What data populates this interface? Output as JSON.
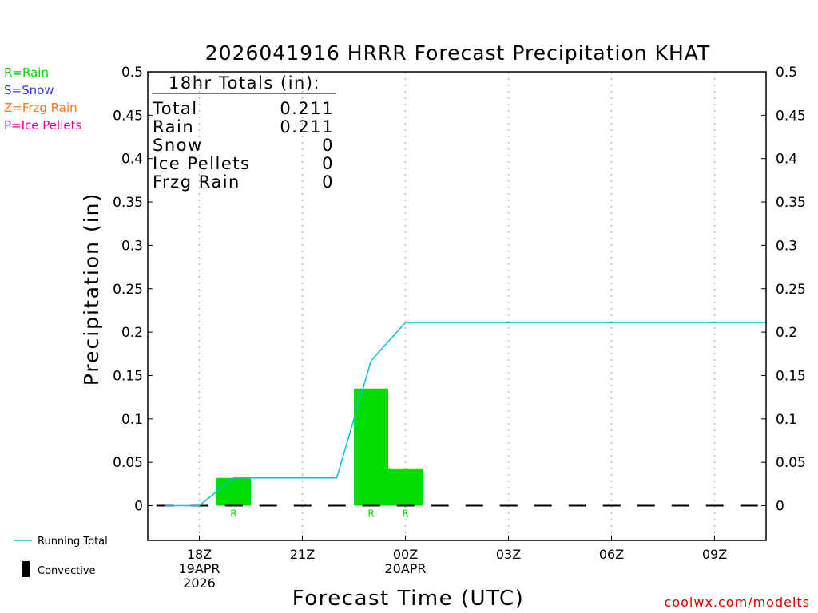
{
  "precip_type_key": [
    {
      "label": "R=Rain",
      "color": "#00d000"
    },
    {
      "label": "S=Snow",
      "color": "#3333ff"
    },
    {
      "label": "Z=Frzg Rain",
      "color": "#f07820"
    },
    {
      "label": "P=Ice Pellets",
      "color": "#e000a0"
    }
  ],
  "line_legend": {
    "running_total": "Running Total",
    "convective": "Convective"
  },
  "credit": "coolwx.com/modelts",
  "totals_box": {
    "heading": "18hr Totals (in):",
    "rows": [
      {
        "label": "Total",
        "value": "0.211"
      },
      {
        "label": "Rain",
        "value": "0.211"
      },
      {
        "label": "Snow",
        "value": "0"
      },
      {
        "label": "Ice Pellets",
        "value": "0"
      },
      {
        "label": "Frzg Rain",
        "value": "0"
      }
    ]
  },
  "colors": {
    "rain": "#00dd00",
    "running_total": "#00c8d0",
    "axis": "#000000",
    "grid": "#aaaaaa"
  },
  "chart_data": {
    "type": "bar",
    "title": "2026041916 HRRR Forecast Precipitation KHAT",
    "xlabel": "Forecast Time (UTC)",
    "ylabel": "Precipitation (in)",
    "xlim": [
      16.5,
      34.5
    ],
    "ylim": [
      -0.04,
      0.5
    ],
    "yticks": [
      0,
      0.05,
      0.1,
      0.15,
      0.2,
      0.25,
      0.3,
      0.35,
      0.4,
      0.45,
      0.5
    ],
    "ytick_labels": [
      "0",
      "0.05",
      "0.1",
      "0.15",
      "0.2",
      "0.25",
      "0.3",
      "0.35",
      "0.4",
      "0.45",
      "0.5"
    ],
    "xticks": [
      {
        "hour": 18,
        "lines": [
          "18Z",
          "19APR",
          "2026"
        ]
      },
      {
        "hour": 21,
        "lines": [
          "21Z"
        ]
      },
      {
        "hour": 24,
        "lines": [
          "00Z",
          "20APR"
        ]
      },
      {
        "hour": 27,
        "lines": [
          "03Z"
        ]
      },
      {
        "hour": 30,
        "lines": [
          "06Z"
        ]
      },
      {
        "hour": 33,
        "lines": [
          "09Z"
        ]
      }
    ],
    "grid": "vertical dotted",
    "bars": [
      {
        "start": 18.5,
        "end": 19.5,
        "value": 0.032,
        "type": "R"
      },
      {
        "start": 22.5,
        "end": 23.5,
        "value": 0.135,
        "type": "R"
      },
      {
        "start": 23.5,
        "end": 24.5,
        "value": 0.043,
        "type": "R"
      }
    ],
    "bar_type_labels": [
      {
        "x": 19,
        "text": "R"
      },
      {
        "x": 23,
        "text": "R"
      },
      {
        "x": 24,
        "text": "R"
      }
    ],
    "series": [
      {
        "name": "Running Total",
        "x": [
          17,
          18,
          19,
          20,
          21,
          22,
          23,
          24,
          25,
          26,
          27,
          28,
          29,
          30,
          31,
          32,
          33,
          34,
          34.5
        ],
        "values": [
          0,
          0,
          0.032,
          0.032,
          0.032,
          0.032,
          0.167,
          0.211,
          0.211,
          0.211,
          0.211,
          0.211,
          0.211,
          0.211,
          0.211,
          0.211,
          0.211,
          0.211,
          0.211
        ]
      }
    ],
    "baseline_dashes": {
      "start": 16.75,
      "end": 34.5,
      "value": 0
    }
  }
}
